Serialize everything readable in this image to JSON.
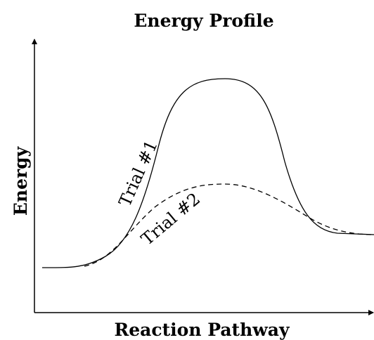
{
  "title": "Energy Profile",
  "x_axis_label": "Reaction Pathway",
  "y_axis_label": "Energy",
  "curves": [
    {
      "label": "Trial #1"
    },
    {
      "label": "Trial #2"
    }
  ]
}
